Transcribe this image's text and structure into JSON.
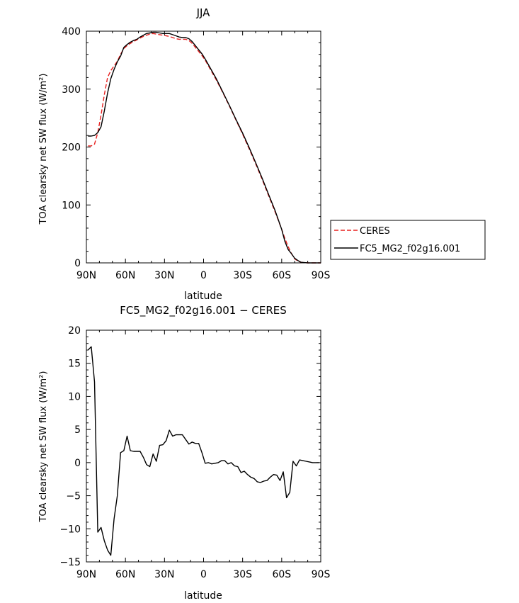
{
  "chart_data": [
    {
      "type": "line",
      "title": "JJA",
      "xlabel": "latitude",
      "ylabel": "TOA clearsky net SW flux (W/m²)",
      "xlim": [
        -90,
        90
      ],
      "ylim": [
        0,
        400
      ],
      "x_ticks": [
        -90,
        -60,
        -30,
        0,
        30,
        60,
        90
      ],
      "x_tick_labels": [
        "90N",
        "60N",
        "30N",
        "0",
        "30S",
        "60S",
        "90S"
      ],
      "y_ticks": [
        0,
        100,
        200,
        300,
        400
      ],
      "y_tick_labels": [
        "0",
        "100",
        "200",
        "300",
        "400"
      ],
      "legend_position": "right, outside plot",
      "series": [
        {
          "name": "CERES",
          "color": "#e8201f",
          "dash": "dashed",
          "x": [
            -88.75,
            -86.25,
            -83.75,
            -81.25,
            -78.75,
            -76.25,
            -73.75,
            -71.25,
            -68.75,
            -66.25,
            -63.75,
            -61.25,
            -58.75,
            -56.25,
            -53.75,
            -51.25,
            -48.75,
            -46.25,
            -43.75,
            -41.25,
            -38.75,
            -36.25,
            -33.75,
            -31.25,
            -28.75,
            -26.25,
            -23.75,
            -21.25,
            -18.75,
            -16.25,
            -13.75,
            -11.25,
            -8.75,
            -6.25,
            -3.75,
            -1.25,
            1.25,
            5,
            10,
            15,
            20,
            25,
            30,
            35,
            40,
            45,
            50,
            55,
            60,
            62.5,
            65,
            67.5,
            70,
            72.5,
            75,
            80,
            85,
            90
          ],
          "values": [
            202,
            202,
            205,
            225,
            255,
            290,
            320,
            332,
            340,
            348,
            360,
            370,
            375,
            379,
            382,
            385,
            388,
            391,
            393,
            395,
            396,
            395,
            394,
            393,
            392,
            391,
            389,
            387,
            386,
            386,
            386,
            384,
            379,
            372,
            365,
            358,
            350,
            335,
            315,
            293,
            270,
            246,
            222,
            197,
            171,
            144,
            116,
            88,
            58,
            42,
            28,
            16,
            7,
            3,
            1,
            0,
            0,
            0
          ]
        },
        {
          "name": "FC5_MG2_f02g16.001",
          "color": "#000000",
          "dash": "solid",
          "x": [
            -88.75,
            -86.25,
            -83.75,
            -81.25,
            -78.75,
            -76.25,
            -73.75,
            -71.25,
            -68.75,
            -66.25,
            -63.75,
            -61.25,
            -58.75,
            -56.25,
            -53.75,
            -51.25,
            -48.75,
            -46.25,
            -43.75,
            -41.25,
            -38.75,
            -36.25,
            -33.75,
            -31.25,
            -28.75,
            -26.25,
            -23.75,
            -21.25,
            -18.75,
            -16.25,
            -13.75,
            -11.25,
            -8.75,
            -6.25,
            -3.75,
            -1.25,
            1.25,
            5,
            10,
            15,
            20,
            25,
            30,
            35,
            40,
            45,
            50,
            55,
            60,
            62.5,
            65,
            67.5,
            70,
            72.5,
            75,
            80,
            85,
            90
          ],
          "values": [
            219,
            219,
            220,
            225,
            235,
            262,
            293,
            318,
            334,
            347,
            357,
            372,
            377,
            381,
            384,
            386,
            390,
            393,
            396,
            397,
            398,
            398,
            397,
            396,
            396,
            396,
            394,
            392,
            390,
            389,
            389,
            387,
            382,
            375,
            368,
            361,
            352,
            337,
            317,
            294,
            271,
            247,
            224,
            199,
            173,
            146,
            118,
            90,
            58,
            37,
            23,
            16,
            8,
            4,
            1,
            0,
            0,
            0
          ]
        }
      ]
    },
    {
      "type": "line",
      "title": "FC5_MG2_f02g16.001 − CERES",
      "xlabel": "latitude",
      "ylabel": "TOA clearsky net SW flux (W/m²)",
      "xlim": [
        -90,
        90
      ],
      "ylim": [
        -15,
        20
      ],
      "x_ticks": [
        -90,
        -60,
        -30,
        0,
        30,
        60,
        90
      ],
      "x_tick_labels": [
        "90N",
        "60N",
        "30N",
        "0",
        "30S",
        "60S",
        "90S"
      ],
      "y_ticks": [
        -15,
        -10,
        -5,
        0,
        5,
        10,
        15,
        20
      ],
      "y_tick_labels": [
        "−15",
        "−10",
        "−5",
        "0",
        "5",
        "10",
        "15",
        "20"
      ],
      "series": [
        {
          "color": "#000000",
          "dash": "solid",
          "x": [
            -88.75,
            -86.25,
            -83.75,
            -81.25,
            -78.75,
            -76.25,
            -73.75,
            -71.25,
            -68.75,
            -66.25,
            -63.75,
            -61.25,
            -58.75,
            -56.25,
            -53.75,
            -51.25,
            -48.75,
            -46.25,
            -43.75,
            -41.25,
            -38.75,
            -36.25,
            -33.75,
            -31.25,
            -28.75,
            -26.25,
            -23.75,
            -21.25,
            -18.75,
            -16.25,
            -13.75,
            -11.25,
            -8.75,
            -6.25,
            -3.75,
            -1.25,
            1.25,
            3.75,
            6.25,
            8.75,
            11.25,
            13.75,
            16.25,
            18.75,
            21.25,
            23.75,
            26.25,
            28.75,
            31.25,
            33.75,
            36.25,
            38.75,
            41.25,
            43.75,
            46.25,
            48.75,
            51.25,
            53.75,
            56.25,
            58.75,
            61.25,
            63.75,
            66.25,
            68.75,
            71.25,
            73.75,
            76.25,
            78.75,
            81.25,
            83.75,
            86.25,
            88.75
          ],
          "values": [
            17,
            17.5,
            12.2,
            -10.5,
            -9.8,
            -11.8,
            -13.2,
            -14,
            -8.5,
            -5,
            1.5,
            1.8,
            4,
            1.8,
            1.7,
            1.7,
            1.7,
            0.8,
            -0.3,
            -0.6,
            1.3,
            0.2,
            2.6,
            2.7,
            3.3,
            4.9,
            4,
            4.2,
            4.2,
            4.2,
            3.5,
            2.8,
            3.1,
            2.9,
            2.9,
            1.5,
            -0.1,
            0,
            -0.2,
            -0.1,
            0,
            0.3,
            0.3,
            -0.2,
            0,
            -0.5,
            -0.6,
            -1.5,
            -1.3,
            -1.8,
            -2.2,
            -2.4,
            -2.9,
            -3,
            -2.8,
            -2.7,
            -2.2,
            -1.8,
            -1.9,
            -2.7,
            -1.4,
            -5.3,
            -4.5,
            0.2,
            -0.5,
            0.4,
            0.3,
            0.2,
            0.1,
            0,
            0,
            0
          ]
        }
      ]
    }
  ]
}
